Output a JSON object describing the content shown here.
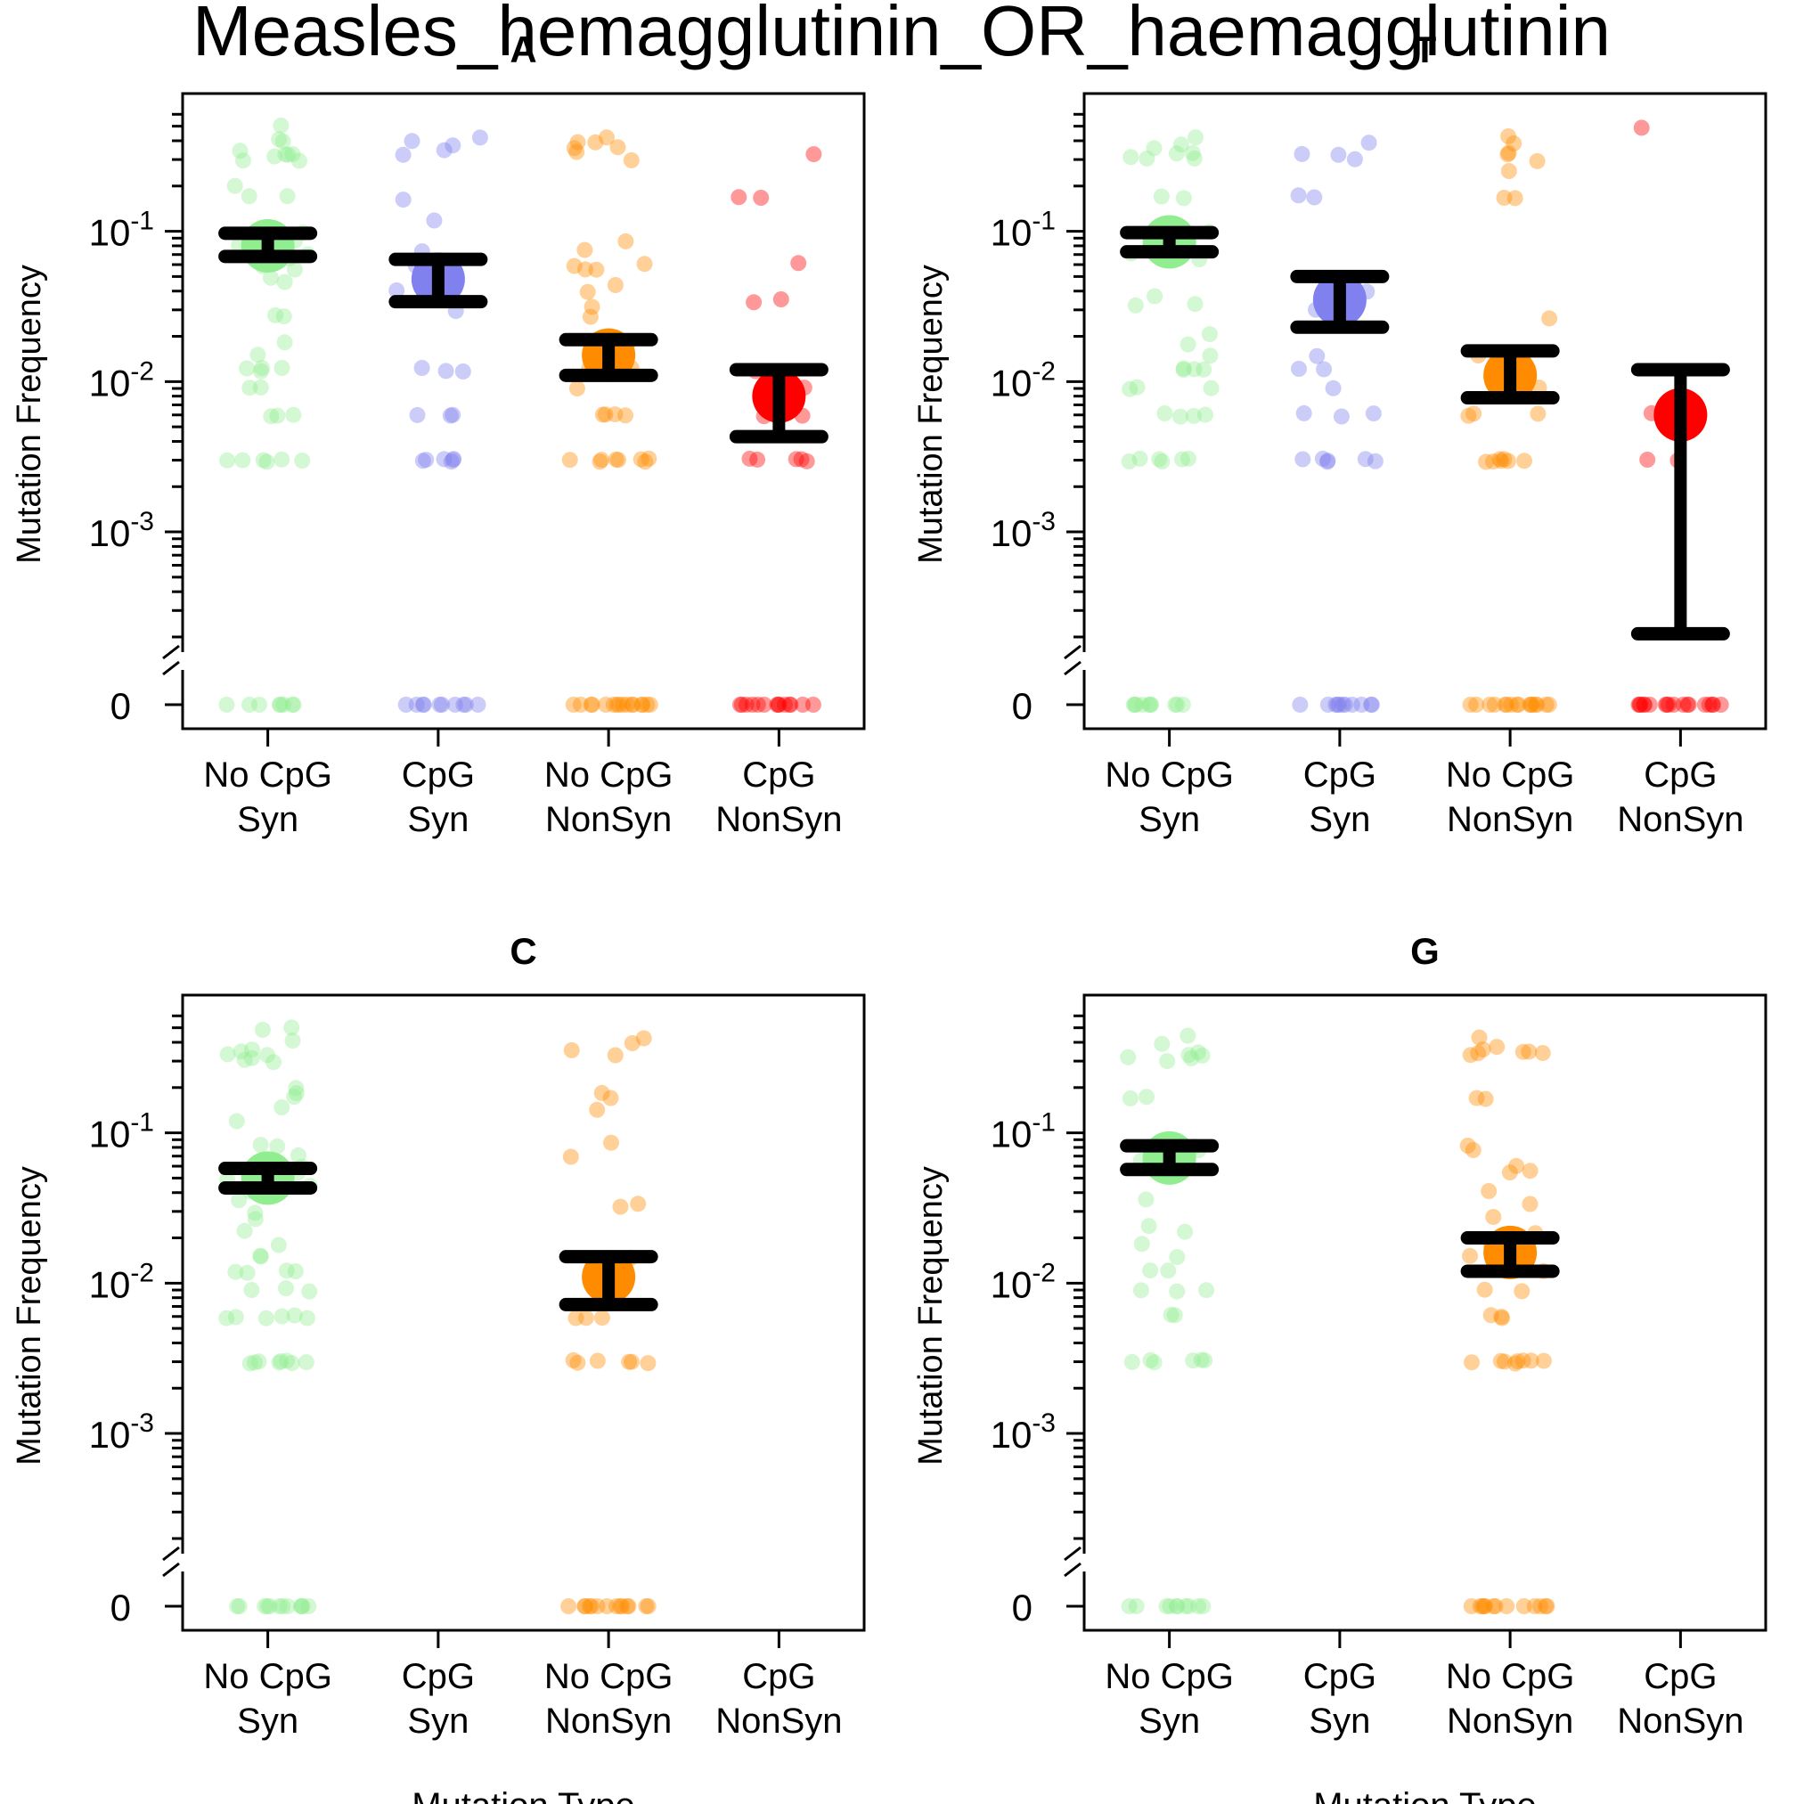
{
  "title": "Measles_hemagglutinin_OR_haemagglutinin",
  "colors": {
    "No CpG Syn": "#90EE90",
    "CpG Syn": "#8080EE",
    "No CpG NonSyn": "#FF8C00",
    "CpG NonSyn": "#FF0000",
    "errorbar": "#000000"
  },
  "chart_data": [
    {
      "type": "scatter",
      "title": "A",
      "xlabel": "",
      "ylabel": "Mutation Frequency",
      "yscale": "log",
      "ylim": [
        0.0002,
        0.7
      ],
      "yticks": [
        {
          "value": 0.1,
          "base": "10",
          "exp": "-1"
        },
        {
          "value": 0.01,
          "base": "10",
          "exp": "-2"
        },
        {
          "value": 0.001,
          "base": "10",
          "exp": "-3"
        }
      ],
      "zero_label": "0",
      "axis_break": true,
      "categories": [
        [
          "No CpG",
          "Syn"
        ],
        [
          "CpG",
          "Syn"
        ],
        [
          "No CpG",
          "NonSyn"
        ],
        [
          "CpG",
          "NonSyn"
        ]
      ],
      "series": [
        {
          "name": "No CpG Syn",
          "mean": 0.08,
          "ci": [
            0.068,
            0.097
          ],
          "values": [
            0.5,
            0.42,
            0.4,
            0.35,
            0.33,
            0.32,
            0.32,
            0.31,
            0.3,
            0.3,
            0.2,
            0.17,
            0.17,
            0.1,
            0.09,
            0.085,
            0.08,
            0.075,
            0.07,
            0.065,
            0.06,
            0.055,
            0.05,
            0.045,
            0.027,
            0.027,
            0.018,
            0.015,
            0.012,
            0.012,
            0.012,
            0.012,
            0.009,
            0.009,
            0.006,
            0.006,
            0.006,
            0.003,
            0.003,
            0.003,
            0.003,
            0.003,
            0.003,
            0,
            0,
            0,
            0,
            0,
            0,
            0,
            0
          ]
        },
        {
          "name": "CpG Syn",
          "mean": 0.048,
          "ci": [
            0.034,
            0.065
          ],
          "values": [
            0.42,
            0.4,
            0.38,
            0.35,
            0.33,
            0.16,
            0.12,
            0.075,
            0.06,
            0.05,
            0.04,
            0.03,
            0.012,
            0.012,
            0.012,
            0.006,
            0.006,
            0.006,
            0.003,
            0.003,
            0.003,
            0.003,
            0.003,
            0.003,
            0,
            0,
            0,
            0,
            0,
            0,
            0,
            0,
            0,
            0
          ]
        },
        {
          "name": "No CpG NonSyn",
          "mean": 0.015,
          "ci": [
            0.011,
            0.019
          ],
          "values": [
            0.42,
            0.4,
            0.38,
            0.36,
            0.35,
            0.33,
            0.3,
            0.085,
            0.075,
            0.06,
            0.06,
            0.057,
            0.055,
            0.045,
            0.04,
            0.032,
            0.027,
            0.018,
            0.015,
            0.012,
            0.012,
            0.009,
            0.006,
            0.006,
            0.006,
            0.006,
            0.003,
            0.003,
            0.003,
            0.003,
            0.003,
            0.003,
            0.003,
            0.003,
            0,
            0,
            0,
            0,
            0,
            0,
            0,
            0,
            0,
            0,
            0,
            0,
            0,
            0,
            0,
            0
          ]
        },
        {
          "name": "CpG NonSyn",
          "mean": 0.008,
          "ci": [
            0.0043,
            0.012
          ],
          "values": [
            0.33,
            0.17,
            0.17,
            0.063,
            0.036,
            0.033,
            0.012,
            0.009,
            0.006,
            0.006,
            0.003,
            0.003,
            0.003,
            0.003,
            0.003,
            0,
            0,
            0,
            0,
            0,
            0,
            0,
            0,
            0,
            0,
            0,
            0,
            0,
            0
          ]
        }
      ]
    },
    {
      "type": "scatter",
      "title": "T",
      "xlabel": "",
      "ylabel": "Mutation Frequency",
      "yscale": "log",
      "ylim": [
        0.0002,
        0.7
      ],
      "yticks": [
        {
          "value": 0.1,
          "base": "10",
          "exp": "-1"
        },
        {
          "value": 0.01,
          "base": "10",
          "exp": "-2"
        },
        {
          "value": 0.001,
          "base": "10",
          "exp": "-3"
        }
      ],
      "zero_label": "0",
      "axis_break": true,
      "categories": [
        [
          "No CpG",
          "Syn"
        ],
        [
          "CpG",
          "Syn"
        ],
        [
          "No CpG",
          "NonSyn"
        ],
        [
          "CpG",
          "NonSyn"
        ]
      ],
      "series": [
        {
          "name": "No CpG Syn",
          "mean": 0.085,
          "ci": [
            0.073,
            0.098
          ],
          "values": [
            0.42,
            0.38,
            0.35,
            0.33,
            0.33,
            0.32,
            0.31,
            0.3,
            0.17,
            0.17,
            0.1,
            0.09,
            0.085,
            0.08,
            0.075,
            0.07,
            0.065,
            0.036,
            0.033,
            0.033,
            0.021,
            0.018,
            0.015,
            0.012,
            0.012,
            0.012,
            0.012,
            0.009,
            0.009,
            0.009,
            0.006,
            0.006,
            0.006,
            0.006,
            0.003,
            0.003,
            0.003,
            0.003,
            0.003,
            0.003,
            0,
            0,
            0,
            0,
            0,
            0,
            0,
            0,
            0,
            0
          ]
        },
        {
          "name": "CpG Syn",
          "mean": 0.035,
          "ci": [
            0.023,
            0.05
          ],
          "values": [
            0.38,
            0.33,
            0.33,
            0.3,
            0.17,
            0.17,
            0.04,
            0.03,
            0.015,
            0.012,
            0.012,
            0.009,
            0.006,
            0.006,
            0.006,
            0.003,
            0.003,
            0.003,
            0.003,
            0.003,
            0.003,
            0,
            0,
            0,
            0,
            0,
            0,
            0,
            0,
            0,
            0,
            0
          ]
        },
        {
          "name": "No CpG NonSyn",
          "mean": 0.011,
          "ci": [
            0.0078,
            0.016
          ],
          "values": [
            0.42,
            0.38,
            0.33,
            0.33,
            0.3,
            0.25,
            0.17,
            0.17,
            0.027,
            0.015,
            0.012,
            0.012,
            0.009,
            0.006,
            0.006,
            0.006,
            0.003,
            0.003,
            0.003,
            0.003,
            0.003,
            0.003,
            0.003,
            0,
            0,
            0,
            0,
            0,
            0,
            0,
            0,
            0,
            0,
            0,
            0,
            0,
            0,
            0,
            0
          ]
        },
        {
          "name": "CpG NonSyn",
          "mean": 0.006,
          "ci": [
            0.00021,
            0.012
          ],
          "values": [
            0.5,
            0.006,
            0.006,
            0.003,
            0.003,
            0,
            0,
            0,
            0,
            0,
            0,
            0,
            0,
            0,
            0,
            0,
            0,
            0,
            0,
            0,
            0,
            0,
            0
          ]
        }
      ]
    },
    {
      "type": "scatter",
      "title": "C",
      "xlabel": "Mutation Type",
      "ylabel": "Mutation Frequency",
      "yscale": "log",
      "ylim": [
        0.0002,
        0.7
      ],
      "yticks": [
        {
          "value": 0.1,
          "base": "10",
          "exp": "-1"
        },
        {
          "value": 0.01,
          "base": "10",
          "exp": "-2"
        },
        {
          "value": 0.001,
          "base": "10",
          "exp": "-3"
        }
      ],
      "zero_label": "0",
      "axis_break": true,
      "categories": [
        [
          "No CpG",
          "Syn"
        ],
        [
          "CpG",
          "Syn"
        ],
        [
          "No CpG",
          "NonSyn"
        ],
        [
          "CpG",
          "NonSyn"
        ]
      ],
      "series": [
        {
          "name": "No CpG Syn",
          "mean": 0.05,
          "ci": [
            0.043,
            0.058
          ],
          "values": [
            0.5,
            0.48,
            0.42,
            0.36,
            0.35,
            0.33,
            0.33,
            0.32,
            0.3,
            0.3,
            0.2,
            0.18,
            0.17,
            0.15,
            0.12,
            0.085,
            0.08,
            0.07,
            0.06,
            0.055,
            0.05,
            0.045,
            0.04,
            0.035,
            0.03,
            0.027,
            0.022,
            0.018,
            0.015,
            0.015,
            0.012,
            0.012,
            0.012,
            0.012,
            0.009,
            0.009,
            0.009,
            0.006,
            0.006,
            0.006,
            0.006,
            0.006,
            0.006,
            0.003,
            0.003,
            0.003,
            0.003,
            0.003,
            0.003,
            0.003,
            0.003,
            0,
            0,
            0,
            0,
            0,
            0,
            0,
            0,
            0,
            0,
            0,
            0
          ]
        },
        {
          "name": "CpG Syn",
          "mean": null,
          "ci": null,
          "values": []
        },
        {
          "name": "No CpG NonSyn",
          "mean": 0.011,
          "ci": [
            0.0072,
            0.015
          ],
          "values": [
            0.42,
            0.4,
            0.35,
            0.33,
            0.18,
            0.17,
            0.14,
            0.088,
            0.07,
            0.033,
            0.033,
            0.015,
            0.012,
            0.009,
            0.006,
            0.006,
            0.006,
            0.003,
            0.003,
            0.003,
            0.003,
            0.003,
            0.003,
            0,
            0,
            0,
            0,
            0,
            0,
            0,
            0,
            0,
            0,
            0,
            0,
            0,
            0
          ]
        },
        {
          "name": "CpG NonSyn",
          "mean": null,
          "ci": null,
          "values": []
        }
      ]
    },
    {
      "type": "scatter",
      "title": "G",
      "xlabel": "Mutation Type",
      "ylabel": "Mutation Frequency",
      "yscale": "log",
      "ylim": [
        0.0002,
        0.7
      ],
      "yticks": [
        {
          "value": 0.1,
          "base": "10",
          "exp": "-1"
        },
        {
          "value": 0.01,
          "base": "10",
          "exp": "-2"
        },
        {
          "value": 0.001,
          "base": "10",
          "exp": "-3"
        }
      ],
      "zero_label": "0",
      "axis_break": true,
      "categories": [
        [
          "No CpG",
          "Syn"
        ],
        [
          "CpG",
          "Syn"
        ],
        [
          "No CpG",
          "NonSyn"
        ],
        [
          "CpG",
          "NonSyn"
        ]
      ],
      "series": [
        {
          "name": "No CpG Syn",
          "mean": 0.068,
          "ci": [
            0.057,
            0.082
          ],
          "values": [
            0.45,
            0.4,
            0.35,
            0.33,
            0.33,
            0.32,
            0.31,
            0.3,
            0.17,
            0.17,
            0.08,
            0.075,
            0.07,
            0.065,
            0.06,
            0.036,
            0.024,
            0.022,
            0.018,
            0.015,
            0.012,
            0.012,
            0.009,
            0.009,
            0.009,
            0.006,
            0.006,
            0.003,
            0.003,
            0.003,
            0.003,
            0.003,
            0.003,
            0,
            0,
            0,
            0,
            0,
            0,
            0,
            0,
            0,
            0
          ]
        },
        {
          "name": "CpG Syn",
          "mean": null,
          "ci": null,
          "values": []
        },
        {
          "name": "No CpG NonSyn",
          "mean": 0.016,
          "ci": [
            0.012,
            0.02
          ],
          "values": [
            0.42,
            0.38,
            0.36,
            0.35,
            0.35,
            0.34,
            0.33,
            0.33,
            0.17,
            0.17,
            0.08,
            0.075,
            0.06,
            0.057,
            0.055,
            0.04,
            0.033,
            0.027,
            0.022,
            0.018,
            0.015,
            0.012,
            0.009,
            0.009,
            0.006,
            0.006,
            0.006,
            0.003,
            0.003,
            0.003,
            0.003,
            0.003,
            0.003,
            0.003,
            0.003,
            0,
            0,
            0,
            0,
            0,
            0,
            0,
            0,
            0,
            0,
            0,
            0,
            0
          ]
        },
        {
          "name": "CpG NonSyn",
          "mean": null,
          "ci": null,
          "values": []
        }
      ]
    }
  ]
}
